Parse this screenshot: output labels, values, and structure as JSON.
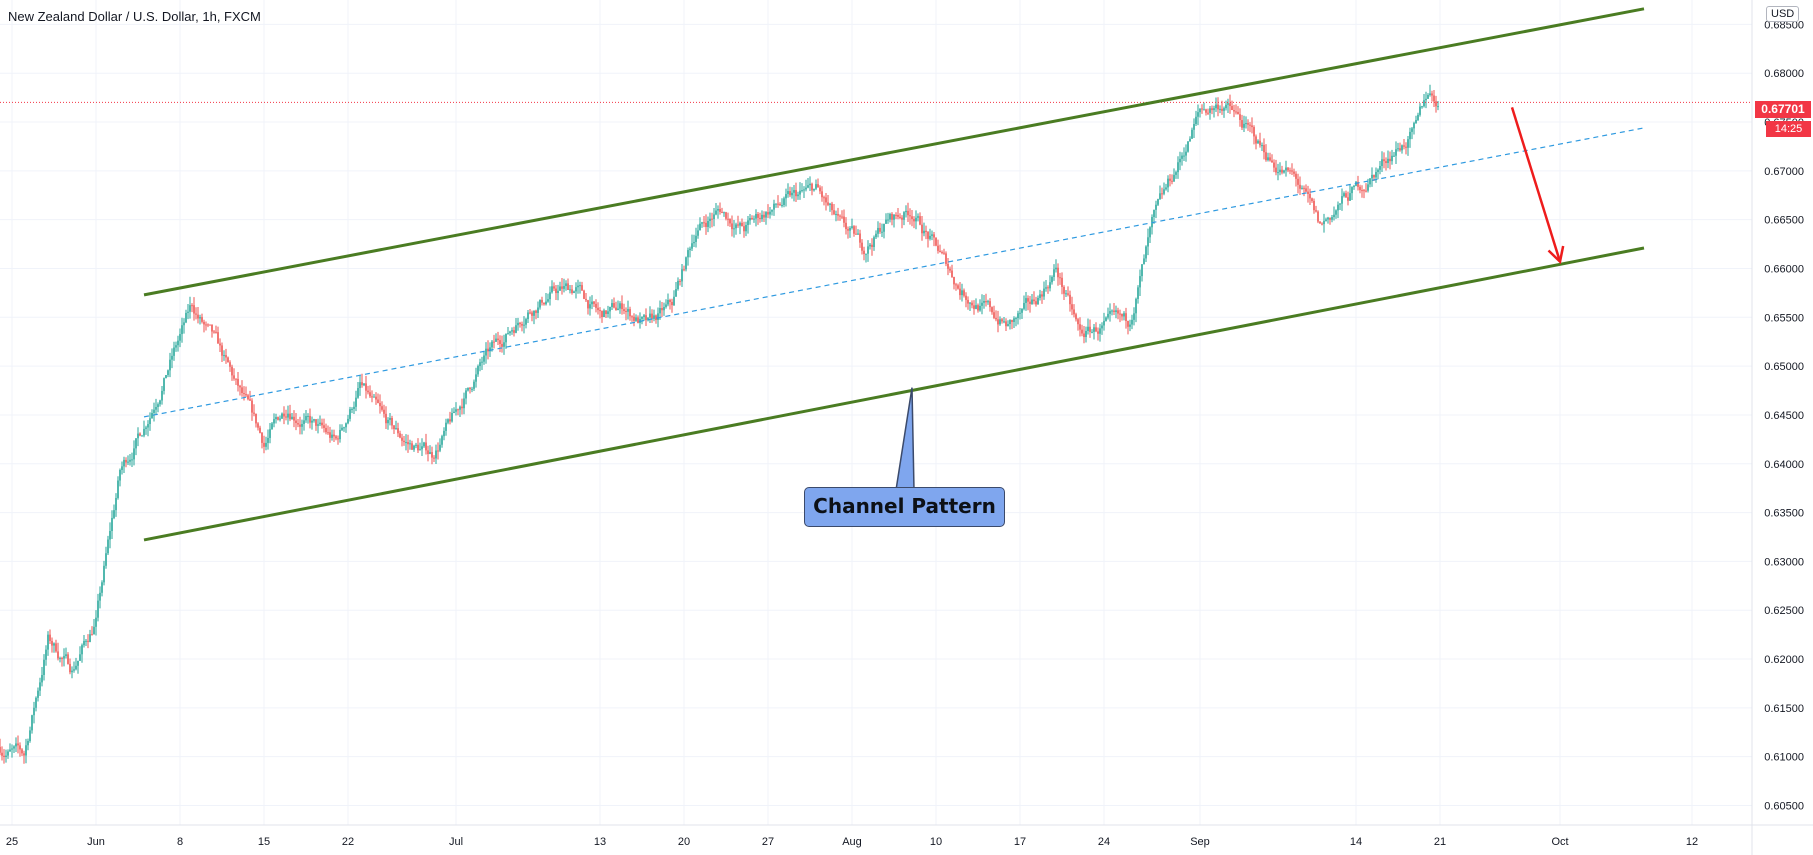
{
  "header": {
    "title": "New Zealand Dollar / U.S. Dollar, 1h, FXCM"
  },
  "price_scale": {
    "currency_label": "USD",
    "last_price_label": "0.67701",
    "countdown_label": "14:25"
  },
  "annotation": {
    "label": "Channel Pattern"
  },
  "colors": {
    "up_candle": "#26a69a",
    "down_candle": "#ef5350",
    "channel_line": "#4a7c22",
    "midline": "#2f9ae0",
    "forecast_arrow": "#ee1c1c",
    "price_line": "#f23645",
    "callout_fill": "#7fa6ee"
  },
  "chart_data": {
    "type": "candlestick",
    "symbol": "NZDUSD",
    "timeframe": "1h",
    "y_axis": {
      "range": [
        0.603,
        0.6875
      ],
      "ticks": [
        "0.60500",
        "0.61000",
        "0.61500",
        "0.62000",
        "0.62500",
        "0.63000",
        "0.63500",
        "0.64000",
        "0.64500",
        "0.65000",
        "0.65500",
        "0.66000",
        "0.66500",
        "0.67000",
        "0.67500",
        "0.68000",
        "0.68500"
      ]
    },
    "x_axis": {
      "range_days": [
        "2020-05-24",
        "2020-10-17"
      ],
      "ticks": [
        {
          "label": "25",
          "date": "2020-05-25"
        },
        {
          "label": "Jun",
          "date": "2020-06-01"
        },
        {
          "label": "8",
          "date": "2020-06-08"
        },
        {
          "label": "15",
          "date": "2020-06-15"
        },
        {
          "label": "22",
          "date": "2020-06-22"
        },
        {
          "label": "Jul",
          "date": "2020-07-01"
        },
        {
          "label": "13",
          "date": "2020-07-13"
        },
        {
          "label": "20",
          "date": "2020-07-20"
        },
        {
          "label": "27",
          "date": "2020-07-27"
        },
        {
          "label": "Aug",
          "date": "2020-08-03"
        },
        {
          "label": "10",
          "date": "2020-08-10"
        },
        {
          "label": "17",
          "date": "2020-08-17"
        },
        {
          "label": "24",
          "date": "2020-08-24"
        },
        {
          "label": "Sep",
          "date": "2020-09-01"
        },
        {
          "label": "14",
          "date": "2020-09-14"
        },
        {
          "label": "21",
          "date": "2020-09-21"
        },
        {
          "label": "Oct",
          "date": "2020-10-01"
        },
        {
          "label": "12",
          "date": "2020-10-12"
        }
      ]
    },
    "last_price": 0.67701,
    "price_path": [
      [
        "2020-05-24",
        0.611
      ],
      [
        "2020-05-26",
        0.61
      ],
      [
        "2020-05-28",
        0.622
      ],
      [
        "2020-05-30",
        0.619
      ],
      [
        "2020-06-01",
        0.624
      ],
      [
        "2020-06-03",
        0.639
      ],
      [
        "2020-06-05",
        0.644
      ],
      [
        "2020-06-07",
        0.65
      ],
      [
        "2020-06-09",
        0.656
      ],
      [
        "2020-06-11",
        0.652
      ],
      [
        "2020-06-13",
        0.647
      ],
      [
        "2020-06-15",
        0.642
      ],
      [
        "2020-06-17",
        0.646
      ],
      [
        "2020-06-19",
        0.644
      ],
      [
        "2020-06-21",
        0.642
      ],
      [
        "2020-06-23",
        0.648
      ],
      [
        "2020-06-25",
        0.644
      ],
      [
        "2020-06-27",
        0.642
      ],
      [
        "2020-06-29",
        0.641
      ],
      [
        "2020-07-01",
        0.645
      ],
      [
        "2020-07-03",
        0.65
      ],
      [
        "2020-07-05",
        0.653
      ],
      [
        "2020-07-07",
        0.656
      ],
      [
        "2020-07-09",
        0.6575
      ],
      [
        "2020-07-11",
        0.658
      ],
      [
        "2020-07-13",
        0.655
      ],
      [
        "2020-07-15",
        0.656
      ],
      [
        "2020-07-17",
        0.654
      ],
      [
        "2020-07-19",
        0.656
      ],
      [
        "2020-07-21",
        0.664
      ],
      [
        "2020-07-23",
        0.666
      ],
      [
        "2020-07-25",
        0.664
      ],
      [
        "2020-07-27",
        0.666
      ],
      [
        "2020-07-29",
        0.667
      ],
      [
        "2020-07-31",
        0.668
      ],
      [
        "2020-08-02",
        0.664
      ],
      [
        "2020-08-04",
        0.662
      ],
      [
        "2020-08-06",
        0.665
      ],
      [
        "2020-08-08",
        0.666
      ],
      [
        "2020-08-10",
        0.662
      ],
      [
        "2020-08-12",
        0.658
      ],
      [
        "2020-08-14",
        0.656
      ],
      [
        "2020-08-16",
        0.654
      ],
      [
        "2020-08-18",
        0.656
      ],
      [
        "2020-08-20",
        0.66
      ],
      [
        "2020-08-22",
        0.653
      ],
      [
        "2020-08-24",
        0.654
      ],
      [
        "2020-08-26",
        0.654
      ],
      [
        "2020-08-28",
        0.664
      ],
      [
        "2020-08-30",
        0.67
      ],
      [
        "2020-09-01",
        0.676
      ],
      [
        "2020-09-03",
        0.677
      ],
      [
        "2020-09-05",
        0.674
      ],
      [
        "2020-09-07",
        0.671
      ],
      [
        "2020-09-09",
        0.669
      ],
      [
        "2020-09-11",
        0.664
      ],
      [
        "2020-09-13",
        0.667
      ],
      [
        "2020-09-15",
        0.669
      ],
      [
        "2020-09-17",
        0.672
      ],
      [
        "2020-09-19",
        0.674
      ],
      [
        "2020-09-20",
        0.678
      ],
      [
        "2020-09-21",
        0.677
      ]
    ],
    "channel": {
      "upper": [
        [
          "2020-06-05",
          0.6573
        ],
        [
          "2020-10-08",
          0.6866
        ]
      ],
      "lower": [
        [
          "2020-06-05",
          0.6322
        ],
        [
          "2020-10-08",
          0.6621
        ]
      ],
      "midline": [
        [
          "2020-06-05",
          0.6448
        ],
        [
          "2020-10-08",
          0.6744
        ]
      ]
    },
    "forecast_arrow": [
      [
        "2020-09-27",
        0.6765
      ],
      [
        "2020-10-01",
        0.6607
      ]
    ],
    "callout_anchor": [
      "2020-08-08",
      0.6478
    ]
  }
}
